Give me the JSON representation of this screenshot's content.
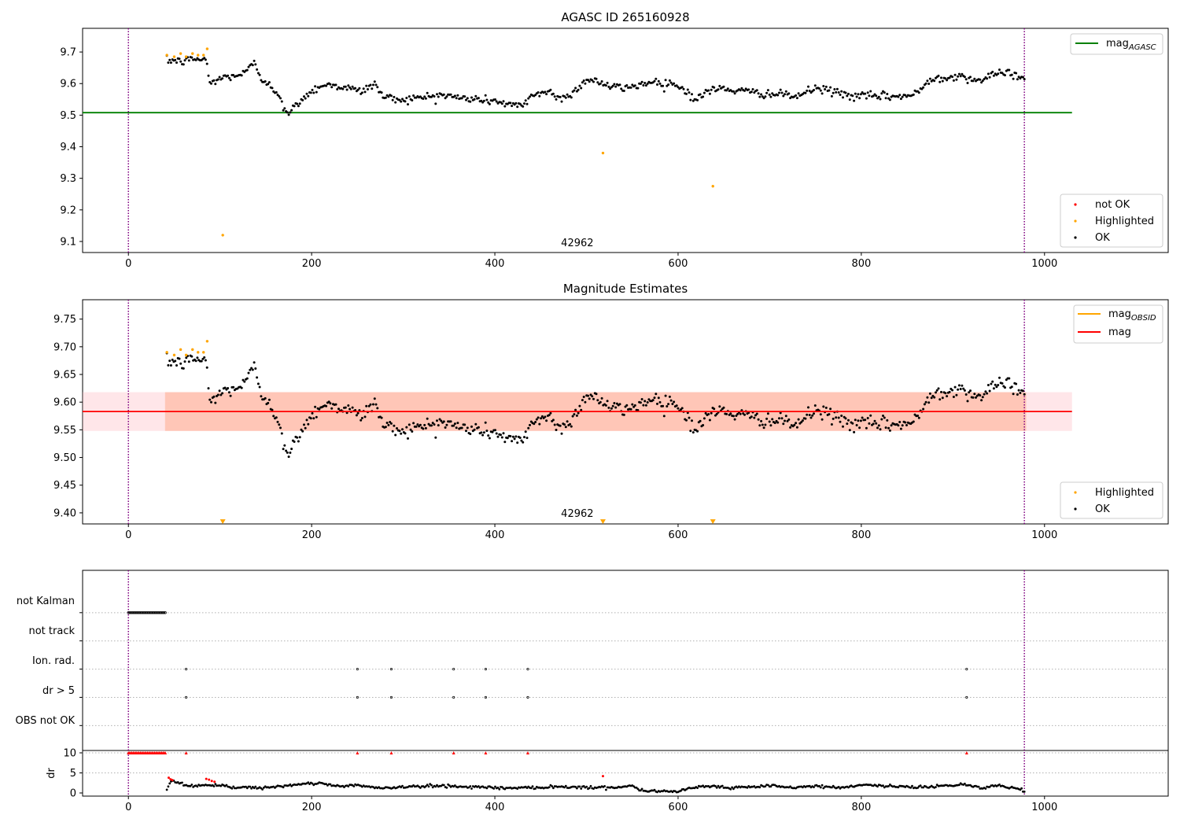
{
  "chart_data": [
    {
      "type": "scatter",
      "title": "AGASC ID 265160928",
      "xlim": [
        -50,
        1135
      ],
      "ylim": [
        9.065,
        9.775
      ],
      "xticks": [
        "0",
        "200",
        "400",
        "600",
        "800",
        "1000"
      ],
      "yticks": [
        "9.1",
        "9.2",
        "9.3",
        "9.4",
        "9.5",
        "9.6",
        "9.7"
      ],
      "vlines": [
        0,
        978
      ],
      "annotation": {
        "text": "42962",
        "x": 490,
        "y": 9.085
      },
      "legend_lines": [
        {
          "label": "mag",
          "sub": "AGASC",
          "color": "#008000"
        }
      ],
      "legend_points": [
        {
          "label": "not OK",
          "color": "#ff0000"
        },
        {
          "label": "Highlighted",
          "color": "#ffa500"
        },
        {
          "label": "OK",
          "color": "#000000"
        }
      ],
      "reference_line": {
        "label": "mag_AGASC",
        "value": 9.508,
        "x_range": [
          -50,
          1030
        ],
        "color": "#008000"
      },
      "ok_profile": {
        "x": [
          42,
          48,
          55,
          62,
          70,
          78,
          85,
          88,
          95,
          105,
          115,
          125,
          138,
          145,
          155,
          165,
          172,
          180,
          190,
          200,
          210,
          225,
          240,
          255,
          268,
          280,
          300,
          320,
          340,
          360,
          380,
          400,
          415,
          430,
          440,
          460,
          470,
          490,
          500,
          510,
          525,
          545,
          560,
          575,
          595,
          610,
          620,
          630,
          650,
          670,
          690,
          710,
          730,
          750,
          770,
          790,
          810,
          830,
          850,
          862,
          875,
          890,
          905,
          930,
          960,
          978
        ],
        "y": [
          9.67,
          9.675,
          9.67,
          9.67,
          9.68,
          9.675,
          9.68,
          9.6,
          9.61,
          9.62,
          9.625,
          9.63,
          9.665,
          9.615,
          9.6,
          9.55,
          9.505,
          9.52,
          9.555,
          9.575,
          9.595,
          9.595,
          9.585,
          9.575,
          9.6,
          9.555,
          9.55,
          9.555,
          9.565,
          9.555,
          9.55,
          9.545,
          9.535,
          9.525,
          9.565,
          9.575,
          9.55,
          9.58,
          9.615,
          9.61,
          9.59,
          9.585,
          9.6,
          9.605,
          9.6,
          9.575,
          9.545,
          9.575,
          9.585,
          9.575,
          9.57,
          9.565,
          9.56,
          9.585,
          9.575,
          9.56,
          9.56,
          9.56,
          9.56,
          9.57,
          9.615,
          9.62,
          9.625,
          9.61,
          9.64,
          9.61
        ],
        "jitter": 0.012,
        "count": 620
      },
      "highlighted_points": {
        "x": [
          42,
          50,
          57,
          63,
          70,
          76,
          82,
          86,
          103,
          518,
          638
        ],
        "y": [
          9.69,
          9.685,
          9.695,
          9.685,
          9.695,
          9.69,
          9.69,
          9.71,
          9.12,
          9.38,
          9.275
        ]
      }
    },
    {
      "type": "scatter",
      "title": "Magnitude Estimates",
      "xlim": [
        -50,
        1135
      ],
      "ylim": [
        9.38,
        9.785
      ],
      "xticks": [
        "0",
        "200",
        "400",
        "600",
        "800",
        "1000"
      ],
      "yticks": [
        "9.40",
        "9.45",
        "9.50",
        "9.55",
        "9.60",
        "9.65",
        "9.70",
        "9.75"
      ],
      "vlines": [
        0,
        978
      ],
      "annotation": {
        "text": "42962",
        "x": 490,
        "y": 9.393
      },
      "legend_lines": [
        {
          "label": "mag",
          "sub": "OBSID",
          "color": "#ffa500"
        },
        {
          "label": "mag",
          "sub": "",
          "color": "#ff0000"
        }
      ],
      "legend_points": [
        {
          "label": "Highlighted",
          "color": "#ffa500"
        },
        {
          "label": "OK",
          "color": "#000000"
        }
      ],
      "reference_line": {
        "label": "mag",
        "value": 9.583,
        "x_range": [
          -50,
          1030
        ],
        "color": "#ff0000"
      },
      "bands": [
        {
          "y": [
            9.548,
            9.618
          ],
          "x_range": [
            -50,
            1030
          ],
          "color": "#ffb6c1",
          "opacity": 0.35
        },
        {
          "y": [
            9.548,
            9.618
          ],
          "x_range": [
            40,
            980
          ],
          "color": "#ffa07a",
          "opacity": 0.45
        }
      ],
      "ok_profile": {
        "x": [
          42,
          48,
          55,
          62,
          70,
          78,
          85,
          88,
          95,
          105,
          115,
          125,
          138,
          145,
          155,
          165,
          172,
          180,
          190,
          200,
          210,
          225,
          240,
          255,
          268,
          280,
          300,
          320,
          340,
          360,
          380,
          400,
          415,
          430,
          440,
          460,
          470,
          490,
          500,
          510,
          525,
          545,
          560,
          575,
          595,
          610,
          620,
          630,
          650,
          670,
          690,
          710,
          730,
          750,
          770,
          790,
          810,
          830,
          850,
          862,
          875,
          890,
          905,
          930,
          960,
          978
        ],
        "y": [
          9.67,
          9.675,
          9.67,
          9.67,
          9.68,
          9.675,
          9.68,
          9.6,
          9.61,
          9.62,
          9.625,
          9.63,
          9.665,
          9.615,
          9.6,
          9.55,
          9.505,
          9.52,
          9.555,
          9.575,
          9.595,
          9.595,
          9.585,
          9.575,
          9.6,
          9.555,
          9.55,
          9.555,
          9.565,
          9.555,
          9.55,
          9.545,
          9.535,
          9.525,
          9.565,
          9.575,
          9.55,
          9.58,
          9.615,
          9.61,
          9.59,
          9.585,
          9.6,
          9.605,
          9.6,
          9.575,
          9.545,
          9.575,
          9.585,
          9.575,
          9.57,
          9.565,
          9.56,
          9.585,
          9.575,
          9.56,
          9.56,
          9.56,
          9.56,
          9.57,
          9.615,
          9.62,
          9.625,
          9.61,
          9.64,
          9.61
        ],
        "jitter": 0.012,
        "count": 620
      },
      "highlighted_points": {
        "x": [
          42,
          50,
          57,
          63,
          70,
          76,
          82,
          86
        ],
        "y": [
          9.69,
          9.685,
          9.695,
          9.685,
          9.695,
          9.69,
          9.69,
          9.71
        ]
      },
      "offscale_markers": {
        "x": [
          103,
          518,
          638
        ],
        "y": 9.384,
        "color": "#ffa500"
      }
    },
    {
      "type": "scatter",
      "xlim": [
        -50,
        1135
      ],
      "ylim": [
        -0.5,
        15.5
      ],
      "vlines": [
        0,
        978
      ],
      "category_rows": [
        {
          "label": "not Kalman",
          "y": 12.5
        },
        {
          "label": "not track",
          "y": 10.5
        },
        {
          "label": "Ion. rad.",
          "y": 8.5
        },
        {
          "label": "dr > 5",
          "y": 6.5
        },
        {
          "label": "OBS not OK",
          "y": 4.5
        }
      ],
      "divider_y": 3,
      "flag_points": {
        "not Kalman": {
          "x_range": [
            0,
            41
          ]
        },
        "Ion. rad.": {
          "x": [
            63,
            250,
            287,
            355,
            390,
            436,
            915
          ]
        },
        "dr > 5": {
          "x": [
            63,
            250,
            287,
            355,
            390,
            436,
            915
          ]
        }
      },
      "dr_panel": {
        "ylabel": "dr",
        "yticks": [
          "0",
          "5",
          "10"
        ],
        "ylim": [
          0,
          10
        ],
        "gridlines": [
          5,
          10
        ],
        "clipped_red": {
          "x_range": [
            0,
            41
          ],
          "extra_x": [
            63,
            250,
            287,
            355,
            390,
            436,
            915
          ],
          "y": 10
        },
        "red_points": {
          "x": [
            44,
            46,
            48,
            85,
            88,
            91,
            94,
            518
          ],
          "y": [
            3.8,
            3.4,
            3.2,
            3.5,
            3.3,
            3.0,
            2.8,
            4.2
          ]
        },
        "ok_profile": {
          "x": [
            42,
            46,
            55,
            65,
            80,
            100,
            115,
            130,
            145,
            160,
            175,
            190,
            210,
            230,
            250,
            270,
            290,
            310,
            330,
            350,
            370,
            390,
            410,
            430,
            450,
            470,
            490,
            510,
            530,
            550,
            560,
            580,
            600,
            620,
            640,
            660,
            680,
            700,
            720,
            740,
            760,
            780,
            800,
            820,
            840,
            860,
            880,
            900,
            915,
            930,
            950,
            965,
            978
          ],
          "y": [
            0.8,
            3.2,
            2.5,
            1.8,
            1.9,
            1.8,
            1.3,
            1.6,
            1.1,
            1.5,
            1.8,
            2.2,
            2.5,
            1.6,
            2.0,
            1.2,
            1.4,
            1.6,
            1.7,
            1.8,
            1.5,
            1.5,
            1.2,
            1.3,
            1.4,
            1.6,
            1.5,
            1.3,
            1.4,
            1.8,
            0.6,
            0.5,
            0.4,
            1.6,
            1.7,
            1.2,
            1.5,
            1.8,
            1.3,
            1.6,
            1.6,
            1.3,
            2.1,
            1.8,
            1.6,
            1.4,
            1.7,
            1.9,
            2.2,
            1.2,
            1.8,
            1.4,
            0.5
          ],
          "jitter": 0.35,
          "count": 620
        }
      },
      "xticks": [
        "0",
        "200",
        "400",
        "600",
        "800",
        "1000"
      ]
    }
  ]
}
